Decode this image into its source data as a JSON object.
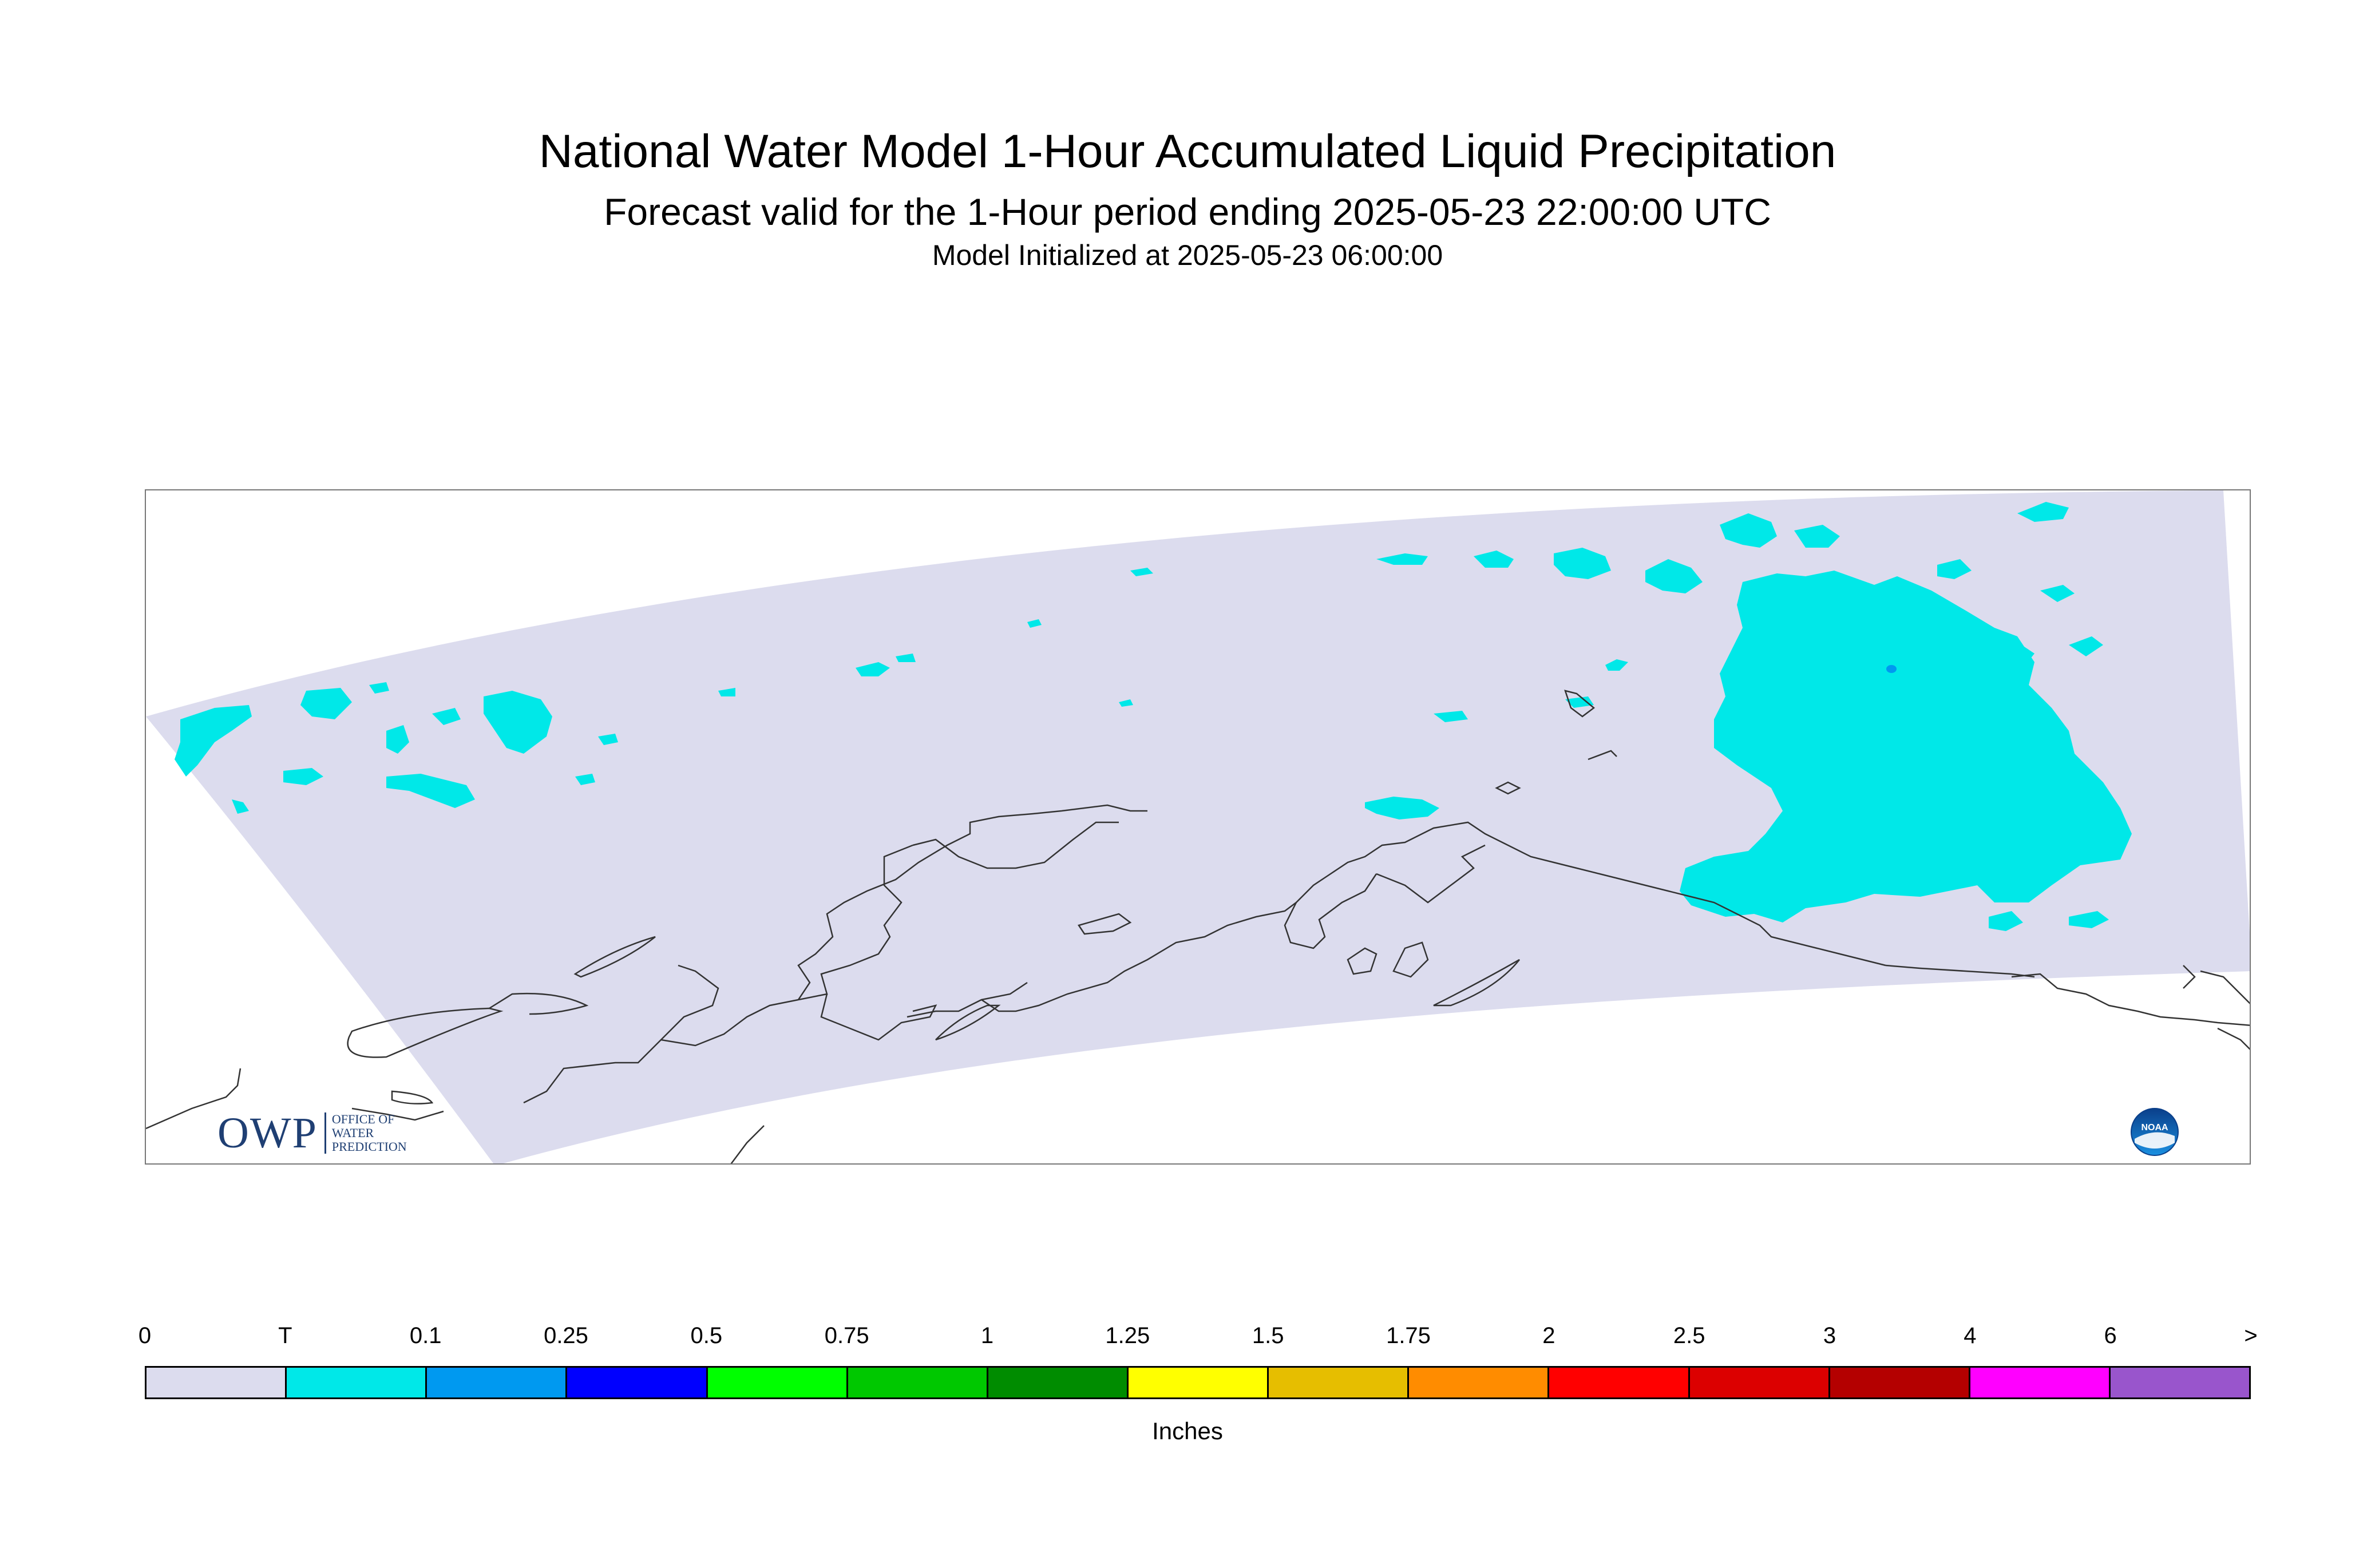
{
  "title": {
    "line1": "National Water Model 1-Hour Accumulated Liquid Precipitation",
    "line2": "Forecast valid for the 1-Hour period ending 2025-05-23 22:00:00 UTC",
    "line3": "Model Initialized at 2025-05-23 06:00:00"
  },
  "map": {
    "region": "Alaska",
    "background_color": "#ffffff",
    "domain_color": "#dcdcee",
    "precip_color": "#00e8e8",
    "heavier_precip_color": "#0099f0",
    "coastline_color": "#333333"
  },
  "legend": {
    "units": "Inches",
    "tick_labels": [
      "0",
      "T",
      "0.1",
      "0.25",
      "0.5",
      "0.75",
      "1",
      "1.25",
      "1.5",
      "1.75",
      "2",
      "2.5",
      "3",
      "4",
      "6",
      ">"
    ],
    "colors": [
      "#dcdcee",
      "#00e8e8",
      "#0099f0",
      "#0000ff",
      "#00ff00",
      "#00c800",
      "#008c00",
      "#ffff00",
      "#e6be00",
      "#ff8c00",
      "#ff0000",
      "#dc0000",
      "#b40000",
      "#ff00ff",
      "#9955cc"
    ]
  },
  "logos": {
    "owp": {
      "letters": "OWP",
      "line1": "OFFICE OF",
      "line2": "WATER",
      "line3": "PREDICTION"
    },
    "noaa": {
      "text": "NOAA"
    }
  }
}
